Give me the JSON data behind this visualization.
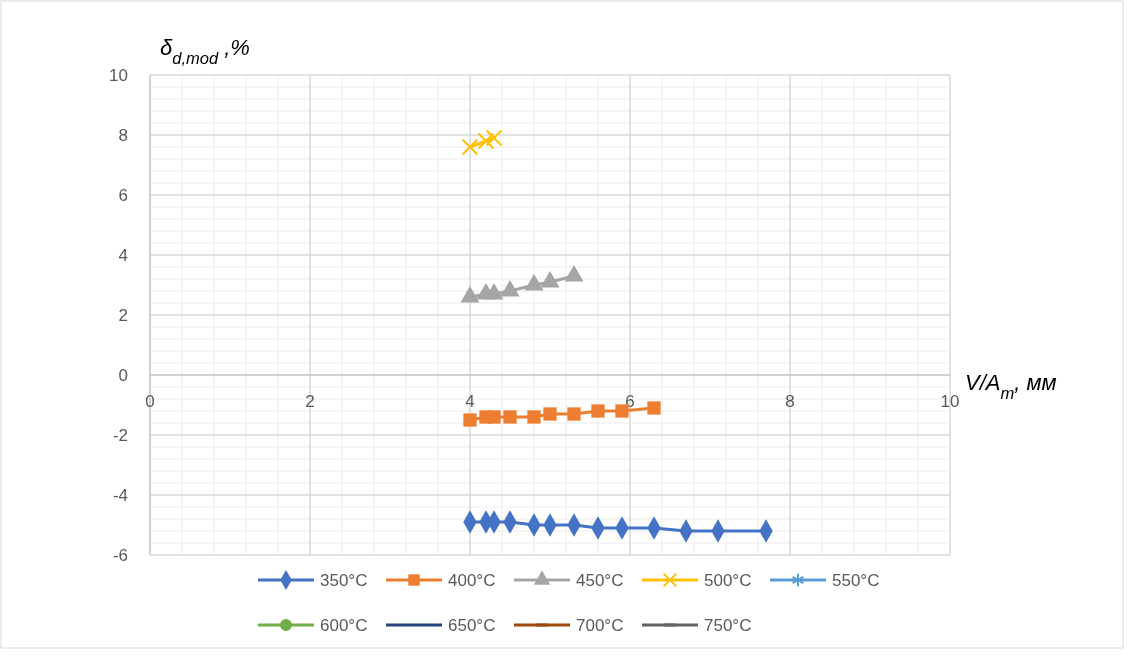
{
  "chart_data": {
    "type": "line",
    "xlabel": "V/A$_{m}$, мм",
    "ylabel": "δ$_{d,mod}$ ,%",
    "xlim": [
      0,
      10
    ],
    "ylim": [
      -6,
      10
    ],
    "xticks": [
      0,
      2,
      4,
      6,
      8,
      10
    ],
    "yticks": [
      -6,
      -4,
      -2,
      0,
      2,
      4,
      6,
      8,
      10
    ],
    "grid": true,
    "legend": "bottom",
    "line_style": "solid",
    "series": [
      {
        "name": "350°C",
        "color": "#4472c4",
        "marker": "diamond",
        "x": [
          4.0,
          4.2,
          4.3,
          4.5,
          4.8,
          5.0,
          5.3,
          5.6,
          5.9,
          6.3,
          6.7,
          7.1,
          7.7
        ],
        "values": [
          -4.9,
          -4.9,
          -4.9,
          -4.9,
          -5.0,
          -5.0,
          -5.0,
          -5.1,
          -5.1,
          -5.1,
          -5.2,
          -5.2,
          -5.2
        ]
      },
      {
        "name": "400°C",
        "color": "#ed7d31",
        "marker": "square",
        "x": [
          4.0,
          4.2,
          4.3,
          4.5,
          4.8,
          5.0,
          5.3,
          5.6,
          5.9,
          6.3
        ],
        "values": [
          -1.5,
          -1.4,
          -1.4,
          -1.4,
          -1.4,
          -1.3,
          -1.3,
          -1.2,
          -1.2,
          -1.1
        ]
      },
      {
        "name": "450°C",
        "color": "#a5a5a5",
        "marker": "triangle",
        "x": [
          4.0,
          4.2,
          4.3,
          4.5,
          4.8,
          5.0,
          5.3
        ],
        "values": [
          2.6,
          2.7,
          2.7,
          2.8,
          3.0,
          3.1,
          3.3
        ]
      },
      {
        "name": "500°C",
        "color": "#ffc000",
        "marker": "cross",
        "x": [
          4.0,
          4.2,
          4.3
        ],
        "values": [
          7.6,
          7.8,
          7.9
        ]
      },
      {
        "name": "550°C",
        "color": "#5b9bd5",
        "marker": "star"
      },
      {
        "name": "600°C",
        "color": "#70ad47",
        "marker": "circle"
      },
      {
        "name": "650°C",
        "color": "#264478",
        "marker": "plus"
      },
      {
        "name": "700°C",
        "color": "#9e480e",
        "marker": "dash"
      },
      {
        "name": "750°C",
        "color": "#636363",
        "marker": "dash"
      }
    ]
  }
}
